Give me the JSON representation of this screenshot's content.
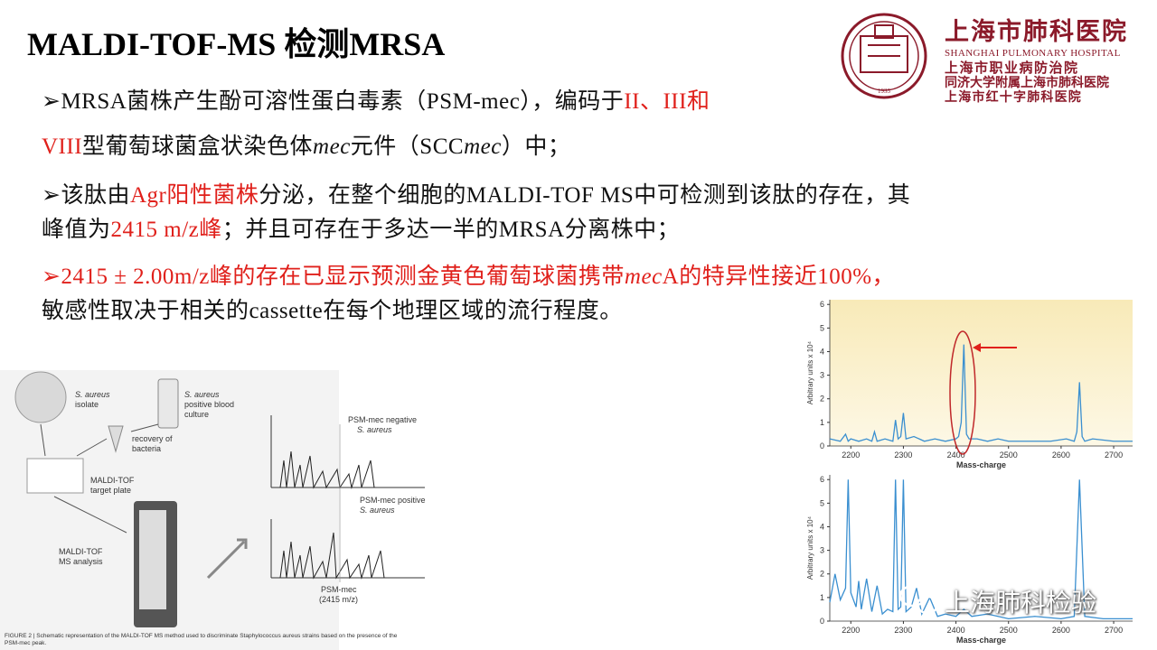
{
  "title": "MALDI-TOF-MS 检测MRSA",
  "logo": {
    "name": "上海市肺科医院",
    "english": "SHANGHAI PULMONARY HOSPITAL",
    "lines": [
      "上海市职业病防治院",
      "同济大学附属上海市肺科医院",
      "上海市红十字肺科医院"
    ],
    "year": "1933",
    "color": "#8b1a2a"
  },
  "bullets": [
    {
      "lines": [
        [
          {
            "text": "➢MRSA菌株产生酚可溶性蛋白毒素（PSM-mec），编码于",
            "style": "normal"
          },
          {
            "text": "II、III和",
            "style": "red"
          }
        ],
        [
          {
            "text": "VIII",
            "style": "red"
          },
          {
            "text": "型葡萄球菌盒状染色体",
            "style": "normal"
          },
          {
            "text": "mec",
            "style": "italic"
          },
          {
            "text": "元件（SCC",
            "style": "normal"
          },
          {
            "text": "mec",
            "style": "italic"
          },
          {
            "text": "）中；",
            "style": "normal"
          }
        ]
      ]
    },
    {
      "lines": [
        [
          {
            "text": "➢该肽由",
            "style": "normal"
          },
          {
            "text": "Agr阳性菌株",
            "style": "red"
          },
          {
            "text": "分泌，在整个细胞的MALDI-TOF MS中可检测到该肽的存在，其",
            "style": "normal"
          }
        ],
        [
          {
            "text": "峰值为",
            "style": "normal"
          },
          {
            "text": "2415 m/z峰",
            "style": "red"
          },
          {
            "text": "；并且可存在于多达一半的MRSA分离株中；",
            "style": "normal"
          }
        ]
      ]
    },
    {
      "lines": [
        [
          {
            "text": "➢2415 ± 2.00m/z峰的存在已显示预测金黄色葡萄球菌携带",
            "style": "red"
          },
          {
            "text": "mec",
            "style": "red-italic"
          },
          {
            "text": "A的特异性接近100%，",
            "style": "red"
          }
        ],
        [
          {
            "text": "敏感性取决于相关的cassette在每个地理区域的流行程度。",
            "style": "normal"
          }
        ]
      ]
    }
  ],
  "figure": {
    "isolate": [
      "S. aureus",
      "isolate"
    ],
    "blood": [
      "S. aureus",
      "positive blood",
      "culture"
    ],
    "recovery": [
      "recovery of",
      "bacteria"
    ],
    "plate": [
      "MALDI-TOF",
      "target plate"
    ],
    "analysis": [
      "MALDI-TOF",
      "MS analysis"
    ],
    "negative": [
      "PSM-mec negative",
      "S. aureus"
    ],
    "positive": [
      "PSM-mec positive",
      "S. aureus"
    ],
    "peak": [
      "PSM-mec",
      "(2415 m/z)"
    ],
    "caption": [
      "FIGURE 2 | Schematic representation of the MALDI-TOF MS method used to discriminate Staphylococcus aureus strains based on the presence of the",
      "PSM-mec peak."
    ]
  },
  "spectra": [
    {
      "xlabel": "Mass-charge",
      "ylabel": "Arbitrary units x 10⁴",
      "color": "#3a8fd0",
      "xlim": [
        2160,
        2736
      ],
      "ylim": [
        0,
        6.2
      ],
      "xticks": [
        2200,
        2300,
        2400,
        2500,
        2600,
        2700
      ],
      "yticks": [
        0,
        1,
        2,
        3,
        4,
        5,
        6
      ],
      "x": [
        2160,
        2180,
        2190,
        2195,
        2200,
        2215,
        2230,
        2240,
        2245,
        2250,
        2265,
        2280,
        2285,
        2290,
        2295,
        2300,
        2305,
        2320,
        2340,
        2360,
        2380,
        2400,
        2405,
        2410,
        2415,
        2420,
        2425,
        2440,
        2460,
        2480,
        2500,
        2540,
        2580,
        2610,
        2625,
        2630,
        2635,
        2640,
        2645,
        2660,
        2700,
        2736
      ],
      "values": [
        0.3,
        0.2,
        0.5,
        0.2,
        0.3,
        0.2,
        0.3,
        0.2,
        0.6,
        0.2,
        0.3,
        0.2,
        1.1,
        0.3,
        0.4,
        1.4,
        0.3,
        0.4,
        0.2,
        0.3,
        0.2,
        0.3,
        0.4,
        1.0,
        4.3,
        0.5,
        0.3,
        0.3,
        0.2,
        0.3,
        0.2,
        0.2,
        0.2,
        0.3,
        0.2,
        0.6,
        2.7,
        0.4,
        0.2,
        0.3,
        0.2,
        0.2
      ]
    },
    {
      "xlabel": "Mass-charge",
      "ylabel": "Arbitrary units x 10⁴",
      "color": "#3a8fd0",
      "xlim": [
        2160,
        2736
      ],
      "ylim": [
        0,
        6.2
      ],
      "xticks": [
        2200,
        2300,
        2400,
        2500,
        2600,
        2700
      ],
      "yticks": [
        0,
        1,
        2,
        3,
        4,
        5,
        6
      ],
      "x": [
        2160,
        2170,
        2180,
        2190,
        2195,
        2200,
        2210,
        2215,
        2220,
        2230,
        2240,
        2250,
        2260,
        2270,
        2280,
        2285,
        2290,
        2295,
        2300,
        2305,
        2315,
        2325,
        2335,
        2350,
        2365,
        2380,
        2400,
        2415,
        2430,
        2460,
        2500,
        2550,
        2600,
        2625,
        2635,
        2645,
        2680,
        2736
      ],
      "values": [
        0.8,
        2.0,
        0.9,
        1.4,
        6.0,
        1.2,
        0.6,
        1.7,
        0.5,
        1.8,
        0.4,
        1.5,
        0.3,
        0.5,
        0.4,
        6.0,
        0.5,
        0.6,
        6.0,
        0.4,
        0.6,
        1.4,
        0.3,
        1.0,
        0.2,
        0.3,
        0.2,
        0.5,
        0.2,
        0.3,
        0.1,
        0.2,
        0.1,
        0.2,
        6.0,
        0.2,
        0.1,
        0.1
      ]
    }
  ],
  "watermark": "上海肺科检验"
}
